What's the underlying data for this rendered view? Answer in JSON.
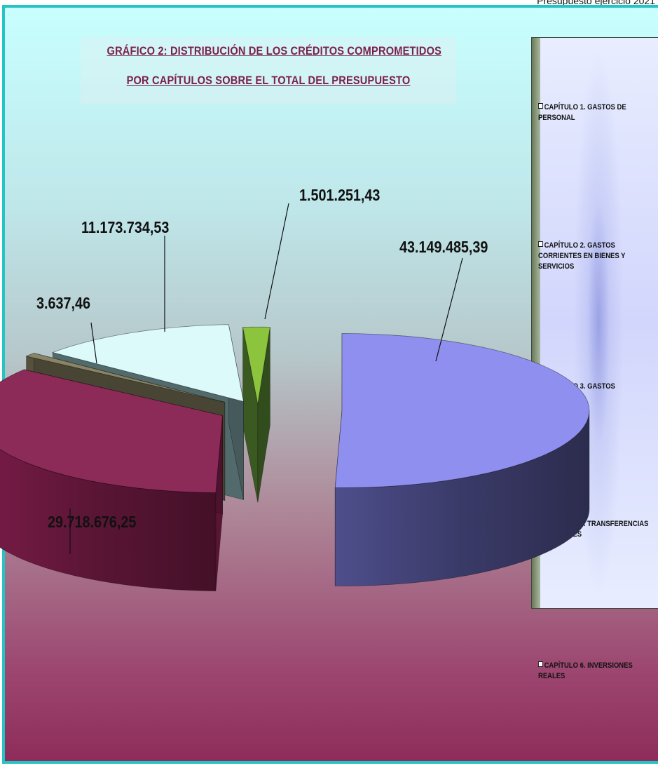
{
  "header_note": "Presupuesto ejercicio 2021",
  "chart_data": {
    "type": "pie",
    "title_line1": "GRÁFICO 2: DISTRIBUCIÓN DE LOS CRÉDITOS COMPROMETIDOS",
    "title_line2": "POR CAPÍTULOS SOBRE EL TOTAL DEL PRESUPUESTO",
    "legend_position": "right",
    "three_d": true,
    "exploded": true,
    "slices": [
      {
        "label": "CAPÍTULO 1.  GASTOS DE PERSONAL",
        "value": 43149485.39,
        "value_text": "43.149.485,39",
        "color": "#8f8ff0",
        "side_color": "#3a3a68"
      },
      {
        "label": "CAPÍTULO 2.  GASTOS CORRIENTES EN BIENES Y SERVICIOS",
        "value": 29718676.25,
        "value_text": "29.718.676,25",
        "color": "#8c2a58",
        "side_color": "#5a1535"
      },
      {
        "label": "CAPITULO 3. GASTOS FINANCIEROS",
        "value": 3637.46,
        "value_text": "3.637,46",
        "color": "#8a8466",
        "side_color": "#55513d"
      },
      {
        "label": "CAPÍTULO 4.  TRANSFERENCIAS CORRIENTES",
        "value": 11173734.53,
        "value_text": "11.173.734,53",
        "color": "#dcfafa",
        "side_color": "#526a6c"
      },
      {
        "label": "CAPÍTULO 6.  INVERSIONES REALES",
        "value": 1501251.43,
        "value_text": "1.501.251,43",
        "color": "#8cc43e",
        "side_color": "#3b5a22"
      }
    ]
  }
}
